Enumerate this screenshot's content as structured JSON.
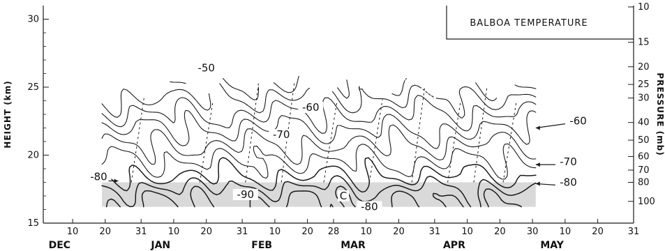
{
  "chart_data": {
    "type": "contour",
    "title": "BALBOA TEMPERATURE",
    "ylabel_left": "HEIGHT (km)",
    "ylabel_right": "PRESSURE (mb)",
    "colors": {
      "ink": "#1a1a1a",
      "shade": "#d9d9d9",
      "background": "#ffffff"
    },
    "height_ticks": [
      "15",
      "20",
      "25",
      "30"
    ],
    "height_range": [
      15,
      31
    ],
    "pressure_ticks": [
      "10",
      "15",
      "20",
      "25",
      "30",
      "40",
      "50",
      "60",
      "70",
      "80",
      "100"
    ],
    "pressure_height_km": [
      30.9,
      28.3,
      26.5,
      25.2,
      24.2,
      22.4,
      21.1,
      19.9,
      18.9,
      18.0,
      16.6
    ],
    "date_ticks": [
      {
        "label": "10",
        "day": 9
      },
      {
        "label": "20",
        "day": 19
      },
      {
        "label": "31",
        "day": 30
      },
      {
        "label": "10",
        "day": 40
      },
      {
        "label": "20",
        "day": 50
      },
      {
        "label": "31",
        "day": 61
      },
      {
        "label": "10",
        "day": 71
      },
      {
        "label": "20",
        "day": 81
      },
      {
        "label": "28",
        "day": 89
      },
      {
        "label": "10",
        "day": 99
      },
      {
        "label": "20",
        "day": 109
      },
      {
        "label": "31",
        "day": 120
      },
      {
        "label": "10",
        "day": 130
      },
      {
        "label": "20",
        "day": 140
      },
      {
        "label": "30",
        "day": 150
      },
      {
        "label": "10",
        "day": 160
      },
      {
        "label": "20",
        "day": 170
      },
      {
        "label": "31",
        "day": 181
      }
    ],
    "months": [
      {
        "label": "DEC",
        "day": 5
      },
      {
        "label": "JAN",
        "day": 36
      },
      {
        "label": "FEB",
        "day": 67
      },
      {
        "label": "MAR",
        "day": 95
      },
      {
        "label": "APR",
        "day": 126
      },
      {
        "label": "MAY",
        "day": 156
      }
    ],
    "day_range": [
      0,
      181
    ],
    "data_day_range": [
      18,
      151
    ],
    "isotherms_c": [
      -90,
      -85,
      -80,
      -75,
      -70,
      -65,
      -60,
      -55,
      -50
    ],
    "contour_labels": [
      {
        "text": "-50",
        "day": 50,
        "height_km": 26.2
      },
      {
        "text": "-60",
        "day": 82,
        "height_km": 23.3
      },
      {
        "text": "-70",
        "day": 73,
        "height_km": 21.3
      },
      {
        "text": "-80",
        "day": 17,
        "height_km": 18.2
      },
      {
        "text": "-90",
        "day": 62,
        "height_km": 16.9
      },
      {
        "text": "C",
        "day": 92,
        "height_km": 16.8
      },
      {
        "text": "-80",
        "day": 100,
        "height_km": 16.0
      },
      {
        "text": "-60",
        "day": 164,
        "height_km": 22.3
      },
      {
        "text": "-70",
        "day": 161,
        "height_km": 19.3
      },
      {
        "text": "-80",
        "day": 161,
        "height_km": 17.8
      }
    ],
    "shaded_region": {
      "label": "temperature below -80",
      "height_km": [
        16.2,
        18.0
      ],
      "day_range": [
        18,
        151
      ]
    }
  }
}
